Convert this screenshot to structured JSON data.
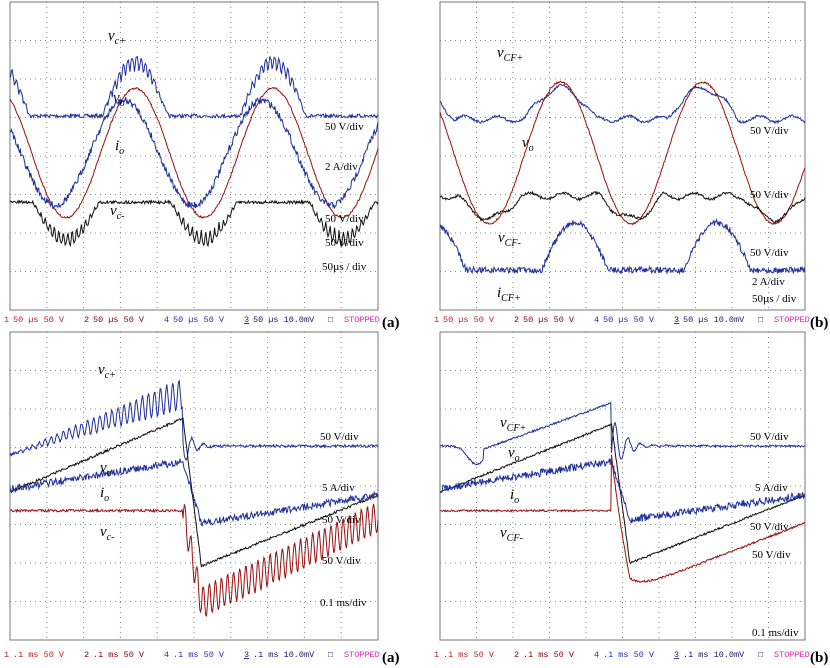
{
  "panels": [
    {
      "tag": "(a)",
      "traces": [
        {
          "symbol": "v",
          "subscript": "c+"
        },
        {
          "symbol": "v",
          "subscript": "o"
        },
        {
          "symbol": "i",
          "subscript": "o"
        },
        {
          "symbol": "v",
          "subscript": "c-"
        }
      ],
      "scales": [
        "50 V/div",
        "2 A/div",
        "50 V/div",
        "50 V/div",
        "50µs / div"
      ],
      "status": [
        {
          "ch": "1",
          "text": "50 µs 50 V"
        },
        {
          "ch": "2",
          "text": "50 µs 50 V"
        },
        {
          "ch": "4",
          "text": "50 µs 50 V"
        },
        {
          "ch": "3",
          "text": "50 µs 10.0mV"
        }
      ],
      "status_symbol": "□",
      "status_state": "STOPPED"
    },
    {
      "tag": "(b)",
      "traces": [
        {
          "symbol": "v",
          "subscript": "CF+"
        },
        {
          "symbol": "v",
          "subscript": "o"
        },
        {
          "symbol": "v",
          "subscript": "CF-"
        },
        {
          "symbol": "i",
          "subscript": "CF+"
        }
      ],
      "scales": [
        "50 V/div",
        "50 V/div",
        "50 V/div",
        "2 A/div",
        "50µs / div"
      ],
      "status": [
        {
          "ch": "1",
          "text": "50 µs 50 V"
        },
        {
          "ch": "2",
          "text": "50 µs 50 V"
        },
        {
          "ch": "4",
          "text": "50 µs 50 V"
        },
        {
          "ch": "3",
          "text": "50 µs 10.0mV"
        }
      ],
      "status_symbol": "□",
      "status_state": "STOPPED"
    },
    {
      "tag": "(a)",
      "traces": [
        {
          "symbol": "v",
          "subscript": "c+"
        },
        {
          "symbol": "v",
          "subscript": "o"
        },
        {
          "symbol": "i",
          "subscript": "o"
        },
        {
          "symbol": "v",
          "subscript": "c-"
        }
      ],
      "scales": [
        "50 V/div",
        "5 A/div",
        "50 V/div",
        "50 V/div",
        "0.1 ms/div"
      ],
      "status": [
        {
          "ch": "1",
          "text": ".1 ms 50 V"
        },
        {
          "ch": "2",
          "text": ".1 ms 50 V"
        },
        {
          "ch": "4",
          "text": ".1 ms 50 V"
        },
        {
          "ch": "3",
          "text": ".1 ms 10.0mV"
        }
      ],
      "status_symbol": "□",
      "status_state": "STOPPED"
    },
    {
      "tag": "(b)",
      "traces": [
        {
          "symbol": "v",
          "subscript": "CF+"
        },
        {
          "symbol": "v",
          "subscript": "o"
        },
        {
          "symbol": "i",
          "subscript": "o"
        },
        {
          "symbol": "v",
          "subscript": "CF-"
        }
      ],
      "scales": [
        "50 V/div",
        "5 A/div",
        "50 V/div",
        "50 V/div",
        "0.1 ms/div"
      ],
      "status": [
        {
          "ch": "1",
          "text": ".1 ms 50 V"
        },
        {
          "ch": "2",
          "text": ".1 ms 50 V"
        },
        {
          "ch": "4",
          "text": ".1 ms 50 V"
        },
        {
          "ch": "3",
          "text": ".1 ms 10.0mV"
        }
      ],
      "status_symbol": "□",
      "status_state": "STOPPED"
    }
  ]
}
